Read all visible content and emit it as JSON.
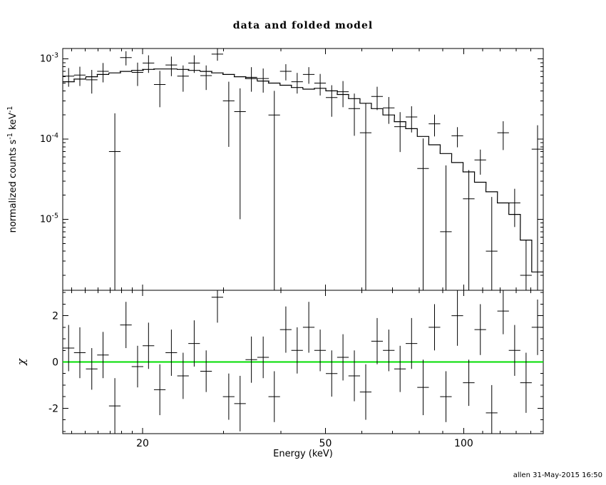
{
  "header": {
    "title": "data and folded model"
  },
  "footer": {
    "signature": "allen 31-May-2015 16:50"
  },
  "chart_data": {
    "type": "scatter",
    "title": "data and folded model",
    "xlabel": "Energy (keV)",
    "ylabel_top_parts": [
      "normalized counts s",
      "-1",
      " keV",
      "-1"
    ],
    "ylabel_bottom": "χ",
    "xscale": "log",
    "yscale_top": "log",
    "yscale_bottom": "linear",
    "xlim": [
      13.4,
      149
    ],
    "ylim_top": [
      1.3e-06,
      0.00135
    ],
    "ylim_bottom": [
      -3.1,
      3.1
    ],
    "x_major_ticks": [
      {
        "v": 20,
        "label": "20"
      },
      {
        "v": 50,
        "label": "50"
      },
      {
        "v": 100,
        "label": "100"
      }
    ],
    "x_minor_ticks": [
      14,
      15,
      16,
      17,
      18,
      19,
      30,
      40,
      60,
      70,
      80,
      90,
      110,
      120,
      130,
      140
    ],
    "y_major_ticks_top": [
      {
        "v": 0.001,
        "mantissa": "10",
        "exp": "-3"
      },
      {
        "v": 0.0001,
        "mantissa": "10",
        "exp": "-4"
      },
      {
        "v": 1e-05,
        "mantissa": "10",
        "exp": "-5"
      }
    ],
    "y_major_ticks_bottom": [
      {
        "v": -2,
        "label": "-2"
      },
      {
        "v": 0,
        "label": "0"
      },
      {
        "v": 2,
        "label": "2"
      }
    ],
    "y_minor_step_bottom": 0.5,
    "bin_half_width_frac": 0.029,
    "colors": {
      "background": "#ffffff",
      "axis": "#000000",
      "data": "#000000",
      "model": "#000000",
      "zero_line": "#00dd00"
    },
    "legend": "none",
    "grid": "off",
    "series": {
      "energy_kev": [
        13.8,
        14.6,
        15.5,
        16.4,
        17.4,
        18.4,
        19.5,
        20.6,
        21.8,
        23.1,
        24.5,
        25.9,
        27.5,
        29.1,
        30.8,
        32.6,
        34.5,
        36.6,
        38.7,
        41.0,
        43.4,
        46.0,
        48.7,
        51.6,
        54.6,
        57.8,
        61.2,
        64.8,
        68.7,
        72.7,
        77.0,
        81.6,
        86.4,
        91.5,
        96.9,
        102.6,
        108.7,
        115.1,
        121.9,
        129.1,
        136.7,
        144.8
      ],
      "data_counts": [
        0.00061,
        0.00063,
        0.00055,
        0.0007,
        7e-05,
        0.00104,
        0.00068,
        0.00089,
        0.00048,
        0.00084,
        0.00061,
        0.00089,
        0.00062,
        0.00115,
        0.0003,
        0.00022,
        0.00059,
        0.00057,
        0.0002,
        0.0007,
        0.00052,
        0.00064,
        0.0005,
        0.00033,
        0.00039,
        0.00024,
        0.00012,
        0.00034,
        0.000245,
        0.000143,
        0.000189,
        4.3e-05,
        0.000155,
        7e-06,
        0.00011,
        1.8e-05,
        5.5e-05,
        4e-06,
        0.00012,
        1.6e-05,
        2e-06,
        7.5e-05
      ],
      "data_err": [
        0.00016,
        0.00017,
        0.00018,
        0.00019,
        0.00014,
        0.00021,
        0.00022,
        0.00022,
        0.00023,
        0.00023,
        0.00022,
        0.00022,
        0.00021,
        0.0002,
        0.00022,
        0.00021,
        0.0002,
        0.00019,
        0.0002,
        0.00016,
        0.00015,
        0.00015,
        0.00015,
        0.00014,
        0.00014,
        0.00013,
        0.00016,
        0.00011,
        9e-05,
        7.4e-05,
        6.8e-05,
        5.9e-05,
        4.7e-05,
        4e-05,
        3.1e-05,
        2.3e-05,
        1.9e-05,
        1.5e-05,
        4.7e-05,
        8e-06,
        3.5e-06,
        7.4e-05
      ],
      "model_counts": [
        0.00052,
        0.00056,
        0.0006,
        0.00064,
        0.00067,
        0.0007,
        0.00072,
        0.00074,
        0.00075,
        0.00075,
        0.00074,
        0.00072,
        0.0007,
        0.00067,
        0.00064,
        0.0006,
        0.00057,
        0.00053,
        0.0005,
        0.00047,
        0.00044,
        0.00042,
        0.00043,
        0.0004,
        0.00036,
        0.00032,
        0.00028,
        0.00024,
        0.0002,
        0.000165,
        0.000135,
        0.000108,
        8.5e-05,
        6.6e-05,
        5.1e-05,
        3.9e-05,
        2.9e-05,
        2.2e-05,
        1.6e-05,
        1.15e-05,
        5.5e-06,
        2.2e-06
      ],
      "chi": [
        0.6,
        0.4,
        -0.3,
        0.3,
        -1.9,
        1.6,
        -0.2,
        0.7,
        -1.2,
        0.4,
        -0.6,
        0.8,
        -0.4,
        2.8,
        -1.5,
        -1.8,
        0.1,
        0.2,
        -1.5,
        1.4,
        0.5,
        1.5,
        0.5,
        -0.5,
        0.2,
        -0.6,
        -1.3,
        0.9,
        0.5,
        -0.3,
        0.8,
        -1.1,
        1.5,
        -1.5,
        2.0,
        -0.9,
        1.4,
        -2.2,
        2.2,
        0.5,
        -0.9,
        1.5
      ],
      "chi_err": [
        1.0,
        1.1,
        0.9,
        1.0,
        1.2,
        1.0,
        0.9,
        1.0,
        1.1,
        1.0,
        1.0,
        1.0,
        0.9,
        1.1,
        1.0,
        1.2,
        1.0,
        0.9,
        1.1,
        1.0,
        1.0,
        1.1,
        0.9,
        1.0,
        1.0,
        1.1,
        1.2,
        1.0,
        0.9,
        1.0,
        1.1,
        1.2,
        1.0,
        1.1,
        1.3,
        1.0,
        1.1,
        1.2,
        1.0,
        1.1,
        1.3,
        1.2
      ]
    }
  }
}
